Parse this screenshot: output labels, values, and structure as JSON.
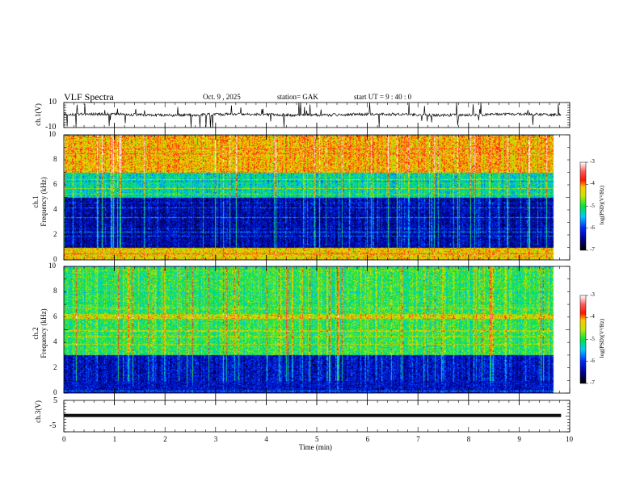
{
  "header": {
    "title": "VLF  Spectra",
    "date": "Oct. 9  , 2025",
    "station": "station= GAK",
    "start": "start  UT  =    9  : 40 : 0"
  },
  "chart_data": [
    {
      "type": "line",
      "name": "ch1-waveform",
      "ylabel": "ch.1(V)",
      "ylim": [
        -10,
        10
      ],
      "yticks": [
        "10",
        "-10"
      ],
      "xlim": [
        0,
        10
      ],
      "x_end": 9.83,
      "baseline": 0.3,
      "noise": "impulsive spikes"
    },
    {
      "type": "heatmap",
      "name": "ch1-spectrogram",
      "ylabel": "ch.1\nFrequency  (kHz)",
      "ylabel_line1": "ch.1",
      "ylabel_line2": "Frequency  (kHz)",
      "ylim": [
        0,
        10
      ],
      "yticks": [
        "0",
        "2",
        "4",
        "6",
        "8",
        "10"
      ],
      "xlim": [
        0,
        10
      ],
      "colorbar": {
        "label": "log(PSD)(V²/Hz)",
        "range": [
          -7,
          -3
        ],
        "ticks": [
          "-3",
          "-4",
          "-5",
          "-6",
          "-7"
        ]
      },
      "bands": [
        {
          "f": [
            0,
            1
          ],
          "level": -4.3
        },
        {
          "f": [
            1,
            5
          ],
          "level": -6.4
        },
        {
          "f": [
            5,
            7
          ],
          "level": -5.3
        },
        {
          "f": [
            7,
            10
          ],
          "level": -4.2
        }
      ]
    },
    {
      "type": "heatmap",
      "name": "ch2-spectrogram",
      "ylabel_line1": "ch.2",
      "ylabel_line2": "Frequency  (kHz)",
      "ylim": [
        0,
        10
      ],
      "yticks": [
        "0",
        "2",
        "4",
        "6",
        "8",
        "10"
      ],
      "xlim": [
        0,
        10
      ],
      "colorbar": {
        "label": "log(PSD)(V²/Hz)",
        "range": [
          -7,
          -3
        ],
        "ticks": [
          "-3",
          "-4",
          "-5",
          "-6",
          "-7"
        ]
      },
      "bands": [
        {
          "f": [
            0,
            3
          ],
          "level": -6.3
        },
        {
          "f": [
            3,
            10
          ],
          "level": -5.0
        },
        {
          "f": [
            5.9,
            6.3
          ],
          "level": -4.4
        }
      ]
    },
    {
      "type": "line",
      "name": "ch3-waveform",
      "ylabel": "ch.3(V)",
      "ylim": [
        -5,
        5
      ],
      "yticks": [
        "5",
        "-5"
      ],
      "xlim": [
        0,
        10
      ],
      "x_end": 9.83,
      "baseline": 0.2
    }
  ],
  "xaxis": {
    "label": "Time  (min)",
    "ticks": [
      "0",
      "1",
      "2",
      "3",
      "4",
      "5",
      "6",
      "7",
      "8",
      "9",
      "10"
    ]
  }
}
